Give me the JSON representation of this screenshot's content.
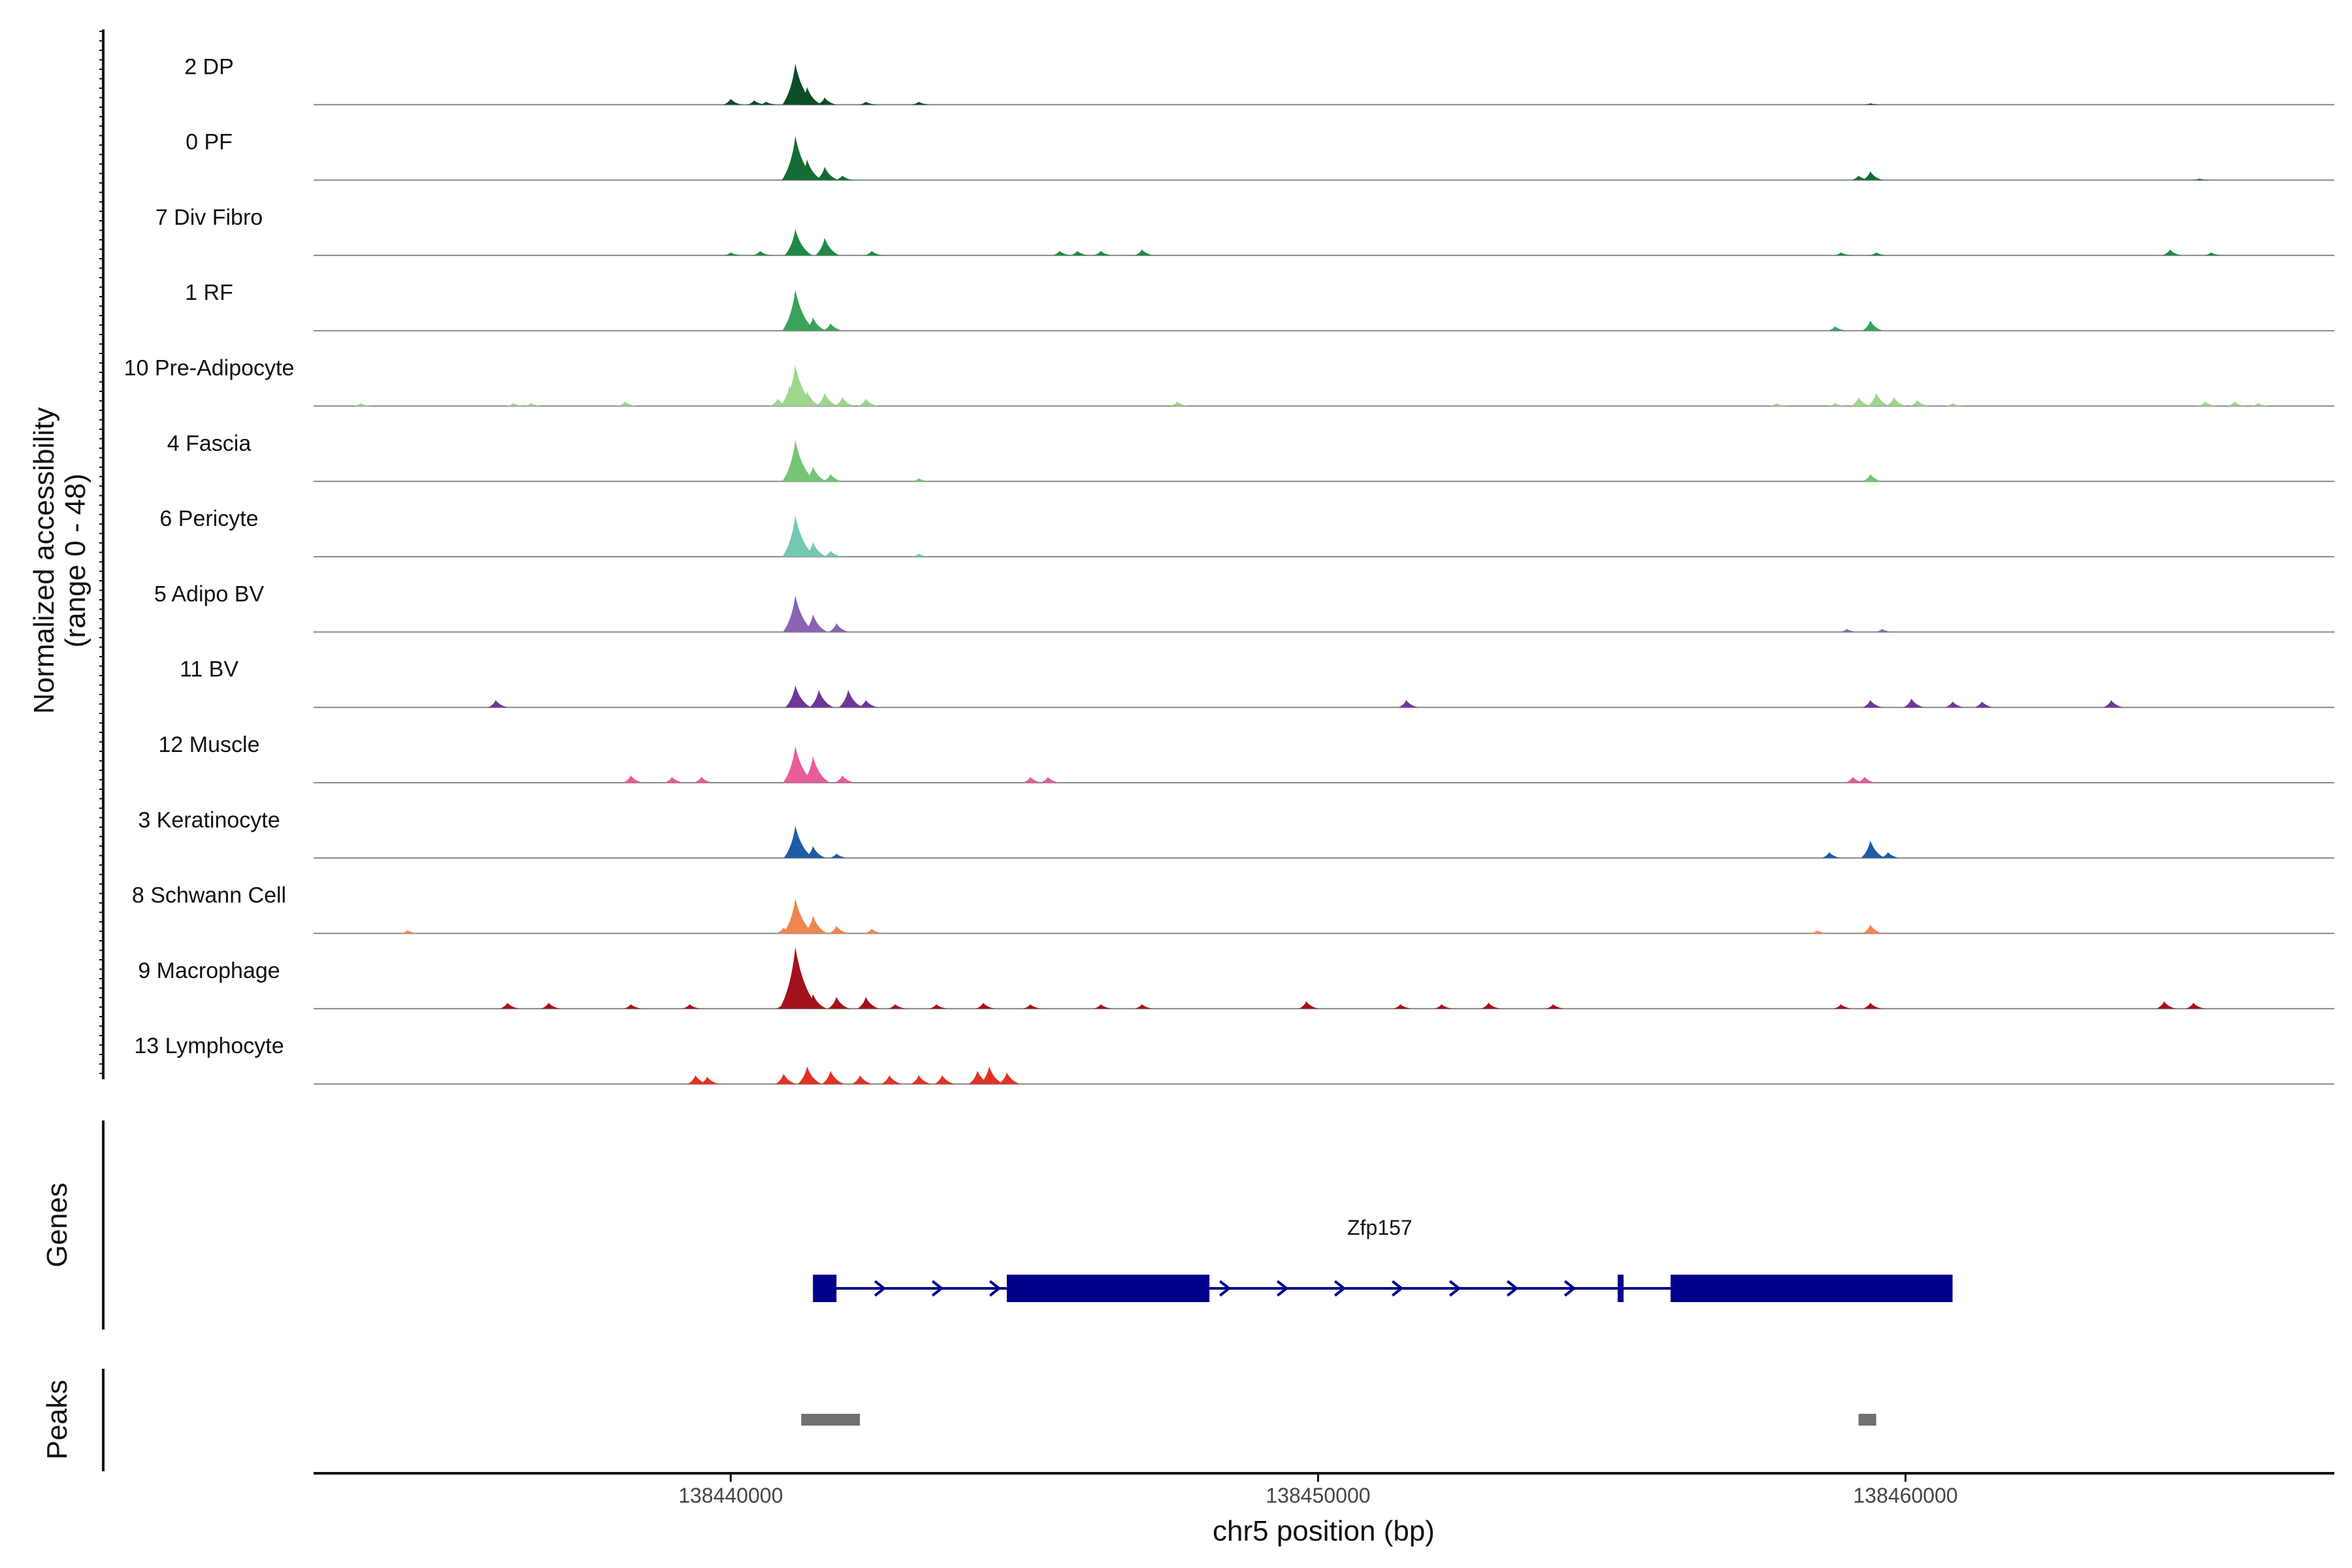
{
  "chart_data": {
    "type": "area",
    "title": "",
    "y_axis_title_line1": "Normalized accessibility",
    "y_axis_title_line2": "(range 0 - 48)",
    "ylim": [
      0,
      48
    ],
    "xlabel": "chr5 position (bp)",
    "xlim": [
      138432900,
      138467300
    ],
    "x_ticks": [
      138440000,
      138450000,
      138460000
    ],
    "x_tick_labels": [
      "138440000",
      "138450000",
      "138460000"
    ],
    "genes_panel_title": "Genes",
    "peaks_panel_title": "Peaks",
    "tracks": [
      {
        "name": "2 DP",
        "color": "#0b4d24",
        "peaks": [
          [
            138440000,
            4
          ],
          [
            138440400,
            3
          ],
          [
            138440600,
            2
          ],
          [
            138441100,
            28
          ],
          [
            138441300,
            12
          ],
          [
            138441600,
            5
          ],
          [
            138442300,
            2
          ],
          [
            138443200,
            2
          ],
          [
            138459400,
            1
          ]
        ]
      },
      {
        "name": "0 PF",
        "color": "#126c33",
        "peaks": [
          [
            138441100,
            30
          ],
          [
            138441300,
            14
          ],
          [
            138441600,
            9
          ],
          [
            138441900,
            3
          ],
          [
            138459200,
            3
          ],
          [
            138459400,
            6
          ],
          [
            138465000,
            1
          ]
        ]
      },
      {
        "name": "7 Div Fibro",
        "color": "#1d8a45",
        "peaks": [
          [
            138440000,
            2
          ],
          [
            138440500,
            3
          ],
          [
            138441100,
            18
          ],
          [
            138441600,
            12
          ],
          [
            138442400,
            3
          ],
          [
            138445600,
            3
          ],
          [
            138445900,
            3
          ],
          [
            138446300,
            3
          ],
          [
            138447000,
            4
          ],
          [
            138458900,
            2
          ],
          [
            138459500,
            2
          ],
          [
            138464500,
            4
          ],
          [
            138465200,
            2
          ]
        ]
      },
      {
        "name": "1 RF",
        "color": "#39a35a",
        "peaks": [
          [
            138441100,
            28
          ],
          [
            138441400,
            9
          ],
          [
            138441700,
            5
          ],
          [
            138458800,
            3
          ],
          [
            138459400,
            7
          ]
        ]
      },
      {
        "name": "10 Pre-Adipocyte",
        "color": "#9dd68d",
        "peaks": [
          [
            138433700,
            2
          ],
          [
            138436300,
            2
          ],
          [
            138436600,
            2
          ],
          [
            138438200,
            3
          ],
          [
            138440800,
            5
          ],
          [
            138441000,
            14
          ],
          [
            138441100,
            28
          ],
          [
            138441300,
            10
          ],
          [
            138441600,
            9
          ],
          [
            138441900,
            6
          ],
          [
            138442300,
            5
          ],
          [
            138447600,
            3
          ],
          [
            138457800,
            2
          ],
          [
            138458800,
            2
          ],
          [
            138459200,
            6
          ],
          [
            138459500,
            9
          ],
          [
            138459800,
            6
          ],
          [
            138460200,
            4
          ],
          [
            138460800,
            2
          ],
          [
            138465100,
            3
          ],
          [
            138465600,
            3
          ],
          [
            138466000,
            2
          ]
        ]
      },
      {
        "name": "4 Fascia",
        "color": "#74c576",
        "peaks": [
          [
            138441100,
            28
          ],
          [
            138441400,
            10
          ],
          [
            138441700,
            5
          ],
          [
            138443200,
            2
          ],
          [
            138459400,
            5
          ]
        ]
      },
      {
        "name": "6 Pericyte",
        "color": "#74c7b3",
        "peaks": [
          [
            138441100,
            28
          ],
          [
            138441400,
            10
          ],
          [
            138441700,
            4
          ],
          [
            138443200,
            2
          ]
        ]
      },
      {
        "name": "5 Adipo BV",
        "color": "#8a63b4",
        "peaks": [
          [
            138441100,
            25
          ],
          [
            138441400,
            12
          ],
          [
            138441800,
            6
          ],
          [
            138459000,
            2
          ],
          [
            138459600,
            2
          ]
        ]
      },
      {
        "name": "11 BV",
        "color": "#6f369a",
        "peaks": [
          [
            138436000,
            5
          ],
          [
            138441100,
            15
          ],
          [
            138441500,
            12
          ],
          [
            138442000,
            12
          ],
          [
            138442300,
            5
          ],
          [
            138451500,
            5
          ],
          [
            138459400,
            5
          ],
          [
            138460100,
            6
          ],
          [
            138460800,
            4
          ],
          [
            138461300,
            4
          ],
          [
            138463500,
            5
          ]
        ]
      },
      {
        "name": "12 Muscle",
        "color": "#e85c9a",
        "peaks": [
          [
            138438300,
            5
          ],
          [
            138439000,
            4
          ],
          [
            138439500,
            4
          ],
          [
            138441100,
            25
          ],
          [
            138441400,
            18
          ],
          [
            138441900,
            5
          ],
          [
            138445100,
            4
          ],
          [
            138445400,
            4
          ],
          [
            138459100,
            4
          ],
          [
            138459300,
            4
          ]
        ]
      },
      {
        "name": "3 Keratinocyte",
        "color": "#1f5ba6",
        "peaks": [
          [
            138441100,
            22
          ],
          [
            138441400,
            8
          ],
          [
            138441800,
            3
          ],
          [
            138458700,
            4
          ],
          [
            138459400,
            12
          ],
          [
            138459700,
            4
          ]
        ]
      },
      {
        "name": "8 Schwann Cell",
        "color": "#f18551",
        "peaks": [
          [
            138434500,
            2
          ],
          [
            138440900,
            4
          ],
          [
            138441100,
            24
          ],
          [
            138441400,
            12
          ],
          [
            138441800,
            5
          ],
          [
            138442400,
            3
          ],
          [
            138458500,
            2
          ],
          [
            138459400,
            6
          ]
        ]
      },
      {
        "name": "9 Macrophage",
        "color": "#a3121c",
        "peaks": [
          [
            138436200,
            4
          ],
          [
            138436900,
            4
          ],
          [
            138438300,
            3
          ],
          [
            138439300,
            3
          ],
          [
            138440900,
            4
          ],
          [
            138441100,
            42
          ],
          [
            138441400,
            10
          ],
          [
            138441800,
            8
          ],
          [
            138442300,
            8
          ],
          [
            138442800,
            3
          ],
          [
            138443500,
            3
          ],
          [
            138444300,
            4
          ],
          [
            138445100,
            3
          ],
          [
            138446300,
            3
          ],
          [
            138447000,
            3
          ],
          [
            138449800,
            5
          ],
          [
            138451400,
            3
          ],
          [
            138452100,
            3
          ],
          [
            138452900,
            4
          ],
          [
            138454000,
            3
          ],
          [
            138458900,
            3
          ],
          [
            138459400,
            4
          ],
          [
            138464400,
            5
          ],
          [
            138464900,
            4
          ]
        ]
      },
      {
        "name": "13 Lymphocyte",
        "color": "#e03224",
        "peaks": [
          [
            138439400,
            6
          ],
          [
            138439600,
            5
          ],
          [
            138440900,
            7
          ],
          [
            138441300,
            12
          ],
          [
            138441700,
            9
          ],
          [
            138442200,
            6
          ],
          [
            138442700,
            6
          ],
          [
            138443200,
            6
          ],
          [
            138443600,
            6
          ],
          [
            138444200,
            9
          ],
          [
            138444400,
            12
          ],
          [
            138444700,
            8
          ]
        ]
      }
    ],
    "genes": [
      {
        "name": "Zfp157",
        "strand": "+",
        "start": 138441400,
        "end": 138460700,
        "exons": [
          [
            138441400,
            138441800
          ],
          [
            138444700,
            138448150
          ],
          [
            138455100,
            138455200
          ],
          [
            138456000,
            138460800
          ]
        ],
        "color": "#00008b"
      }
    ],
    "peak_regions": [
      [
        138441200,
        138442200
      ],
      [
        138459200,
        138459500
      ]
    ],
    "peak_color": "#707070"
  }
}
